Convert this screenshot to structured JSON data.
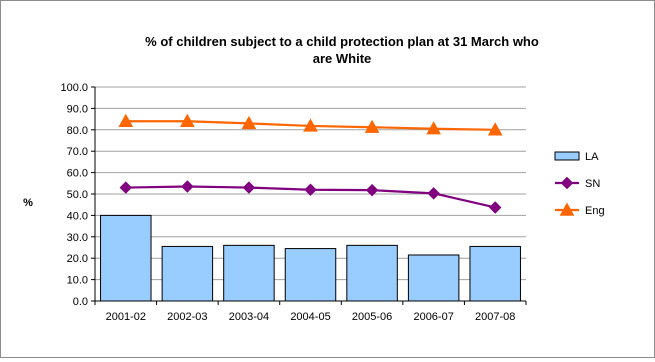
{
  "chart_data": {
    "type": "bar",
    "title_lines": [
      "% of children subject to a child protection plan at 31 March who",
      "are White"
    ],
    "xlabel": "",
    "ylabel": "%",
    "ylim": [
      0,
      100
    ],
    "y_ticks": [
      "0.0",
      "10.0",
      "20.0",
      "30.0",
      "40.0",
      "50.0",
      "60.0",
      "70.0",
      "80.0",
      "90.0",
      "100.0"
    ],
    "grid": true,
    "legend_position": "right",
    "categories": [
      "2001-02",
      "2002-03",
      "2003-04",
      "2004-05",
      "2005-06",
      "2006-07",
      "2007-08"
    ],
    "series": [
      {
        "name": "LA",
        "kind": "bar",
        "color": "#99ccff",
        "values": [
          40.0,
          25.5,
          26.0,
          24.5,
          26.0,
          21.5,
          25.5
        ]
      },
      {
        "name": "SN",
        "kind": "line",
        "marker": "diamond",
        "color": "#800080",
        "values": [
          53.0,
          53.5,
          53.0,
          52.0,
          51.8,
          50.3,
          43.7
        ]
      },
      {
        "name": "Eng",
        "kind": "line",
        "marker": "triangle",
        "color": "#ff6600",
        "values": [
          84.0,
          84.0,
          83.0,
          81.8,
          81.2,
          80.5,
          80.0
        ]
      }
    ]
  }
}
